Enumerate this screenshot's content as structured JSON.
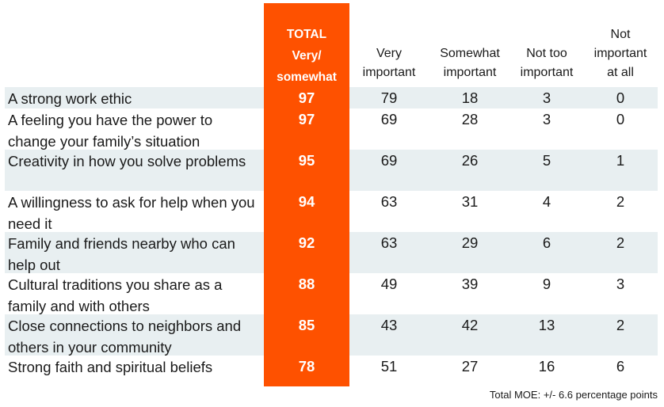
{
  "chart_data": {
    "type": "table",
    "columns": [
      {
        "key": "total",
        "label_lines": [
          "TOTAL",
          "Very/",
          "somewhat"
        ]
      },
      {
        "key": "very",
        "label_lines": [
          "Very",
          "important"
        ]
      },
      {
        "key": "somewhat",
        "label_lines": [
          "Somewhat",
          "important"
        ]
      },
      {
        "key": "not_too",
        "label_lines": [
          "Not too",
          "important"
        ]
      },
      {
        "key": "not_at_all",
        "label_lines": [
          "Not",
          "important",
          "at all"
        ]
      }
    ],
    "rows": [
      {
        "label": "A strong work ethic",
        "total": 97,
        "very": 79,
        "somewhat": 18,
        "not_too": 3,
        "not_at_all": 0
      },
      {
        "label": "A feeling you have the power to change your family’s situation",
        "total": 97,
        "very": 69,
        "somewhat": 28,
        "not_too": 3,
        "not_at_all": 0
      },
      {
        "label": "Creativity in how you solve problems",
        "total": 95,
        "very": 69,
        "somewhat": 26,
        "not_too": 5,
        "not_at_all": 1
      },
      {
        "label": "A willingness to ask for help when you need it",
        "total": 94,
        "very": 63,
        "somewhat": 31,
        "not_too": 4,
        "not_at_all": 2
      },
      {
        "label": "Family and friends nearby who can help out",
        "total": 92,
        "very": 63,
        "somewhat": 29,
        "not_too": 6,
        "not_at_all": 2
      },
      {
        "label": "Cultural traditions you share as a family and with others",
        "total": 88,
        "very": 49,
        "somewhat": 39,
        "not_too": 9,
        "not_at_all": 3
      },
      {
        "label": "Close connections to neighbors and others in your community",
        "total": 85,
        "very": 43,
        "somewhat": 42,
        "not_too": 13,
        "not_at_all": 2
      },
      {
        "label": "Strong faith and spiritual beliefs",
        "total": 78,
        "very": 51,
        "somewhat": 27,
        "not_too": 16,
        "not_at_all": 6
      }
    ],
    "footnote": "Total MOE: +/- 6.6 percentage points",
    "colors": {
      "total_column": "#fe5100",
      "row_shade": "#e8eff1"
    }
  }
}
